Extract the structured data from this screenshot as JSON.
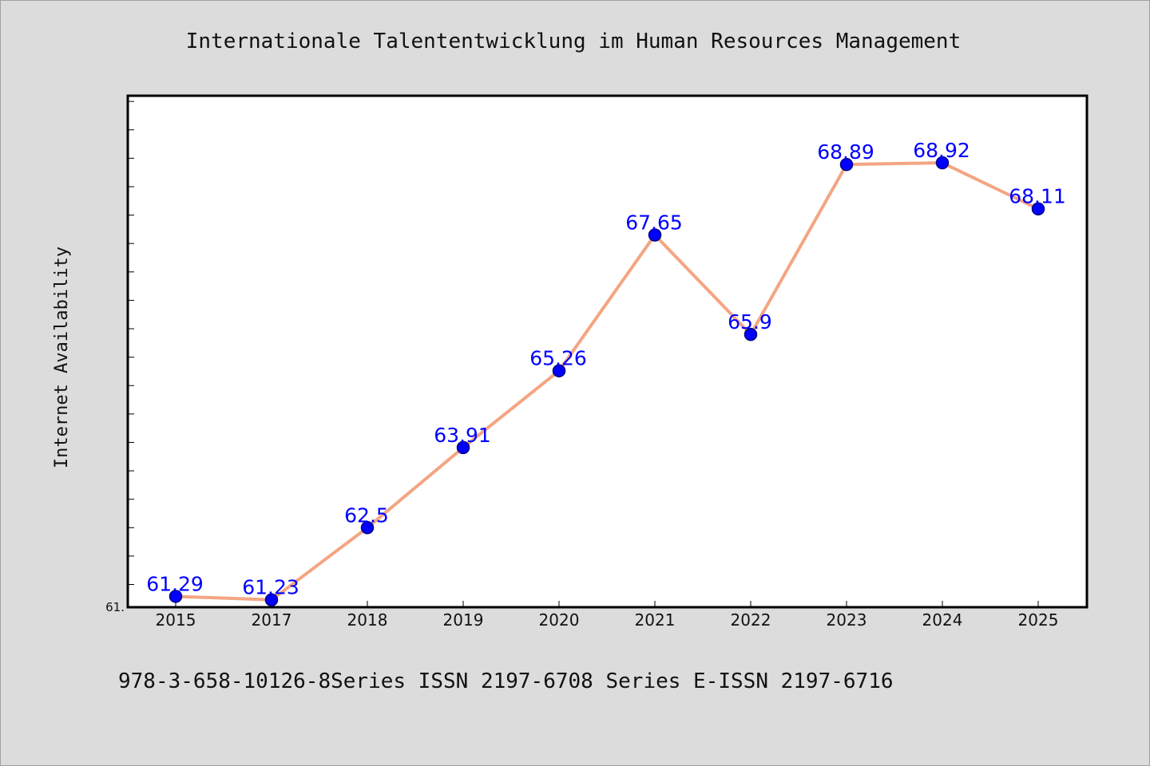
{
  "chart_data": {
    "type": "line",
    "title": "Internationale Talententwicklung im Human Resources Management",
    "xlabel": "",
    "ylabel": "Internet Availability",
    "categories": [
      "2015",
      "2017",
      "2018",
      "2019",
      "2020",
      "2021",
      "2022",
      "2023",
      "2024",
      "2025"
    ],
    "series": [
      {
        "values": [
          61.29,
          61.23,
          62.5,
          63.91,
          65.26,
          67.65,
          65.9,
          68.89,
          68.92,
          68.11
        ],
        "labels": [
          "61.29",
          "61.23",
          "62.5",
          "63.91",
          "65.26",
          "67.65",
          "65.9",
          "68.89",
          "68.92",
          "68.11"
        ]
      }
    ],
    "ylim": [
      61.1,
      70.1
    ],
    "ytick_label": "61.",
    "grid": false,
    "legend": "none",
    "colors": {
      "line": "#f4a582",
      "marker": "#0000ff",
      "marker_edge": "#000080",
      "label": "#0000ff",
      "plot_bg": "#ffffff",
      "page_bg": "#dcdcdc"
    }
  },
  "footer": {
    "text": "978-3-658-10126-8Series ISSN 2197-6708 Series E-ISSN 2197-6716"
  }
}
